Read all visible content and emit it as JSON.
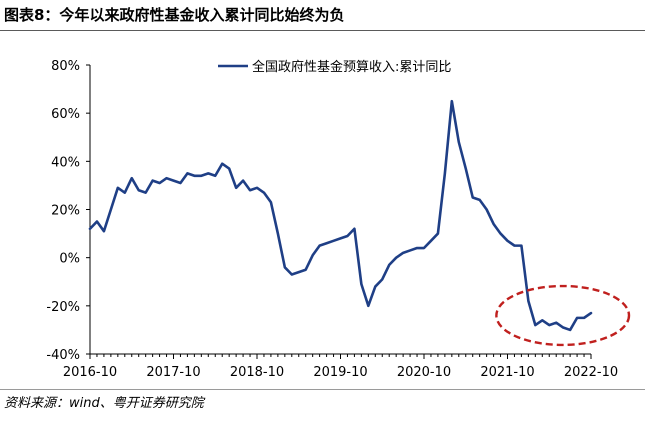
{
  "header": {
    "title": "图表8：今年以来政府性基金收入累计同比始终为负"
  },
  "footer": {
    "source": "资料来源：wind、粤开证券研究院"
  },
  "colors": {
    "series": "#1f3f86",
    "highlight": "#c0201e",
    "axis": "#000000"
  },
  "chart_data": {
    "type": "line",
    "title": "",
    "xlabel": "",
    "ylabel": "",
    "ylim": [
      -40,
      80
    ],
    "yticks": [
      80,
      60,
      40,
      20,
      0,
      -20,
      -40
    ],
    "ytick_labels": [
      "80%",
      "60%",
      "40%",
      "20%",
      "0%",
      "-20%",
      "-40%"
    ],
    "x_ticks": [
      "2016-10",
      "2017-10",
      "2018-10",
      "2019-10",
      "2020-10",
      "2021-10",
      "2022-10"
    ],
    "x_range_months": [
      0,
      72
    ],
    "legend_position": "top-center",
    "grid": false,
    "highlight": "2022-03 to 2022-10",
    "series": [
      {
        "name": "全国政府性基金预算收入:累计同比",
        "x": [
          "2016-10",
          "2016-11",
          "2016-12",
          "2017-01",
          "2017-02",
          "2017-03",
          "2017-04",
          "2017-05",
          "2017-06",
          "2017-07",
          "2017-08",
          "2017-09",
          "2017-10",
          "2017-11",
          "2017-12",
          "2018-01",
          "2018-02",
          "2018-03",
          "2018-04",
          "2018-05",
          "2018-06",
          "2018-07",
          "2018-08",
          "2018-09",
          "2018-10",
          "2018-11",
          "2018-12",
          "2019-01",
          "2019-02",
          "2019-03",
          "2019-04",
          "2019-05",
          "2019-06",
          "2019-07",
          "2019-08",
          "2019-09",
          "2019-10",
          "2019-11",
          "2019-12",
          "2020-01",
          "2020-02",
          "2020-03",
          "2020-04",
          "2020-05",
          "2020-06",
          "2020-07",
          "2020-08",
          "2020-09",
          "2020-10",
          "2020-11",
          "2020-12",
          "2021-01",
          "2021-02",
          "2021-03",
          "2021-04",
          "2021-05",
          "2021-06",
          "2021-07",
          "2021-08",
          "2021-09",
          "2021-10",
          "2021-11",
          "2021-12",
          "2022-01",
          "2022-02",
          "2022-03",
          "2022-04",
          "2022-05",
          "2022-06",
          "2022-07",
          "2022-08",
          "2022-09",
          "2022-10"
        ],
        "values": [
          12,
          15,
          11,
          20,
          29,
          27,
          33,
          28,
          27,
          32,
          31,
          33,
          32,
          31,
          35,
          34,
          34,
          35,
          34,
          39,
          37,
          29,
          32,
          28,
          29,
          27,
          23,
          10,
          -4,
          -7,
          -6,
          -5,
          1,
          5,
          6,
          7,
          8,
          9,
          12,
          -11,
          -20,
          -12,
          -9,
          -3,
          0,
          2,
          3,
          4,
          4,
          7,
          10,
          35,
          65,
          48,
          37,
          25,
          24,
          20,
          14,
          10,
          7,
          5,
          5,
          -18,
          -28,
          -26,
          -28,
          -27,
          -29,
          -30,
          -25,
          -25,
          -23
        ]
      }
    ]
  }
}
